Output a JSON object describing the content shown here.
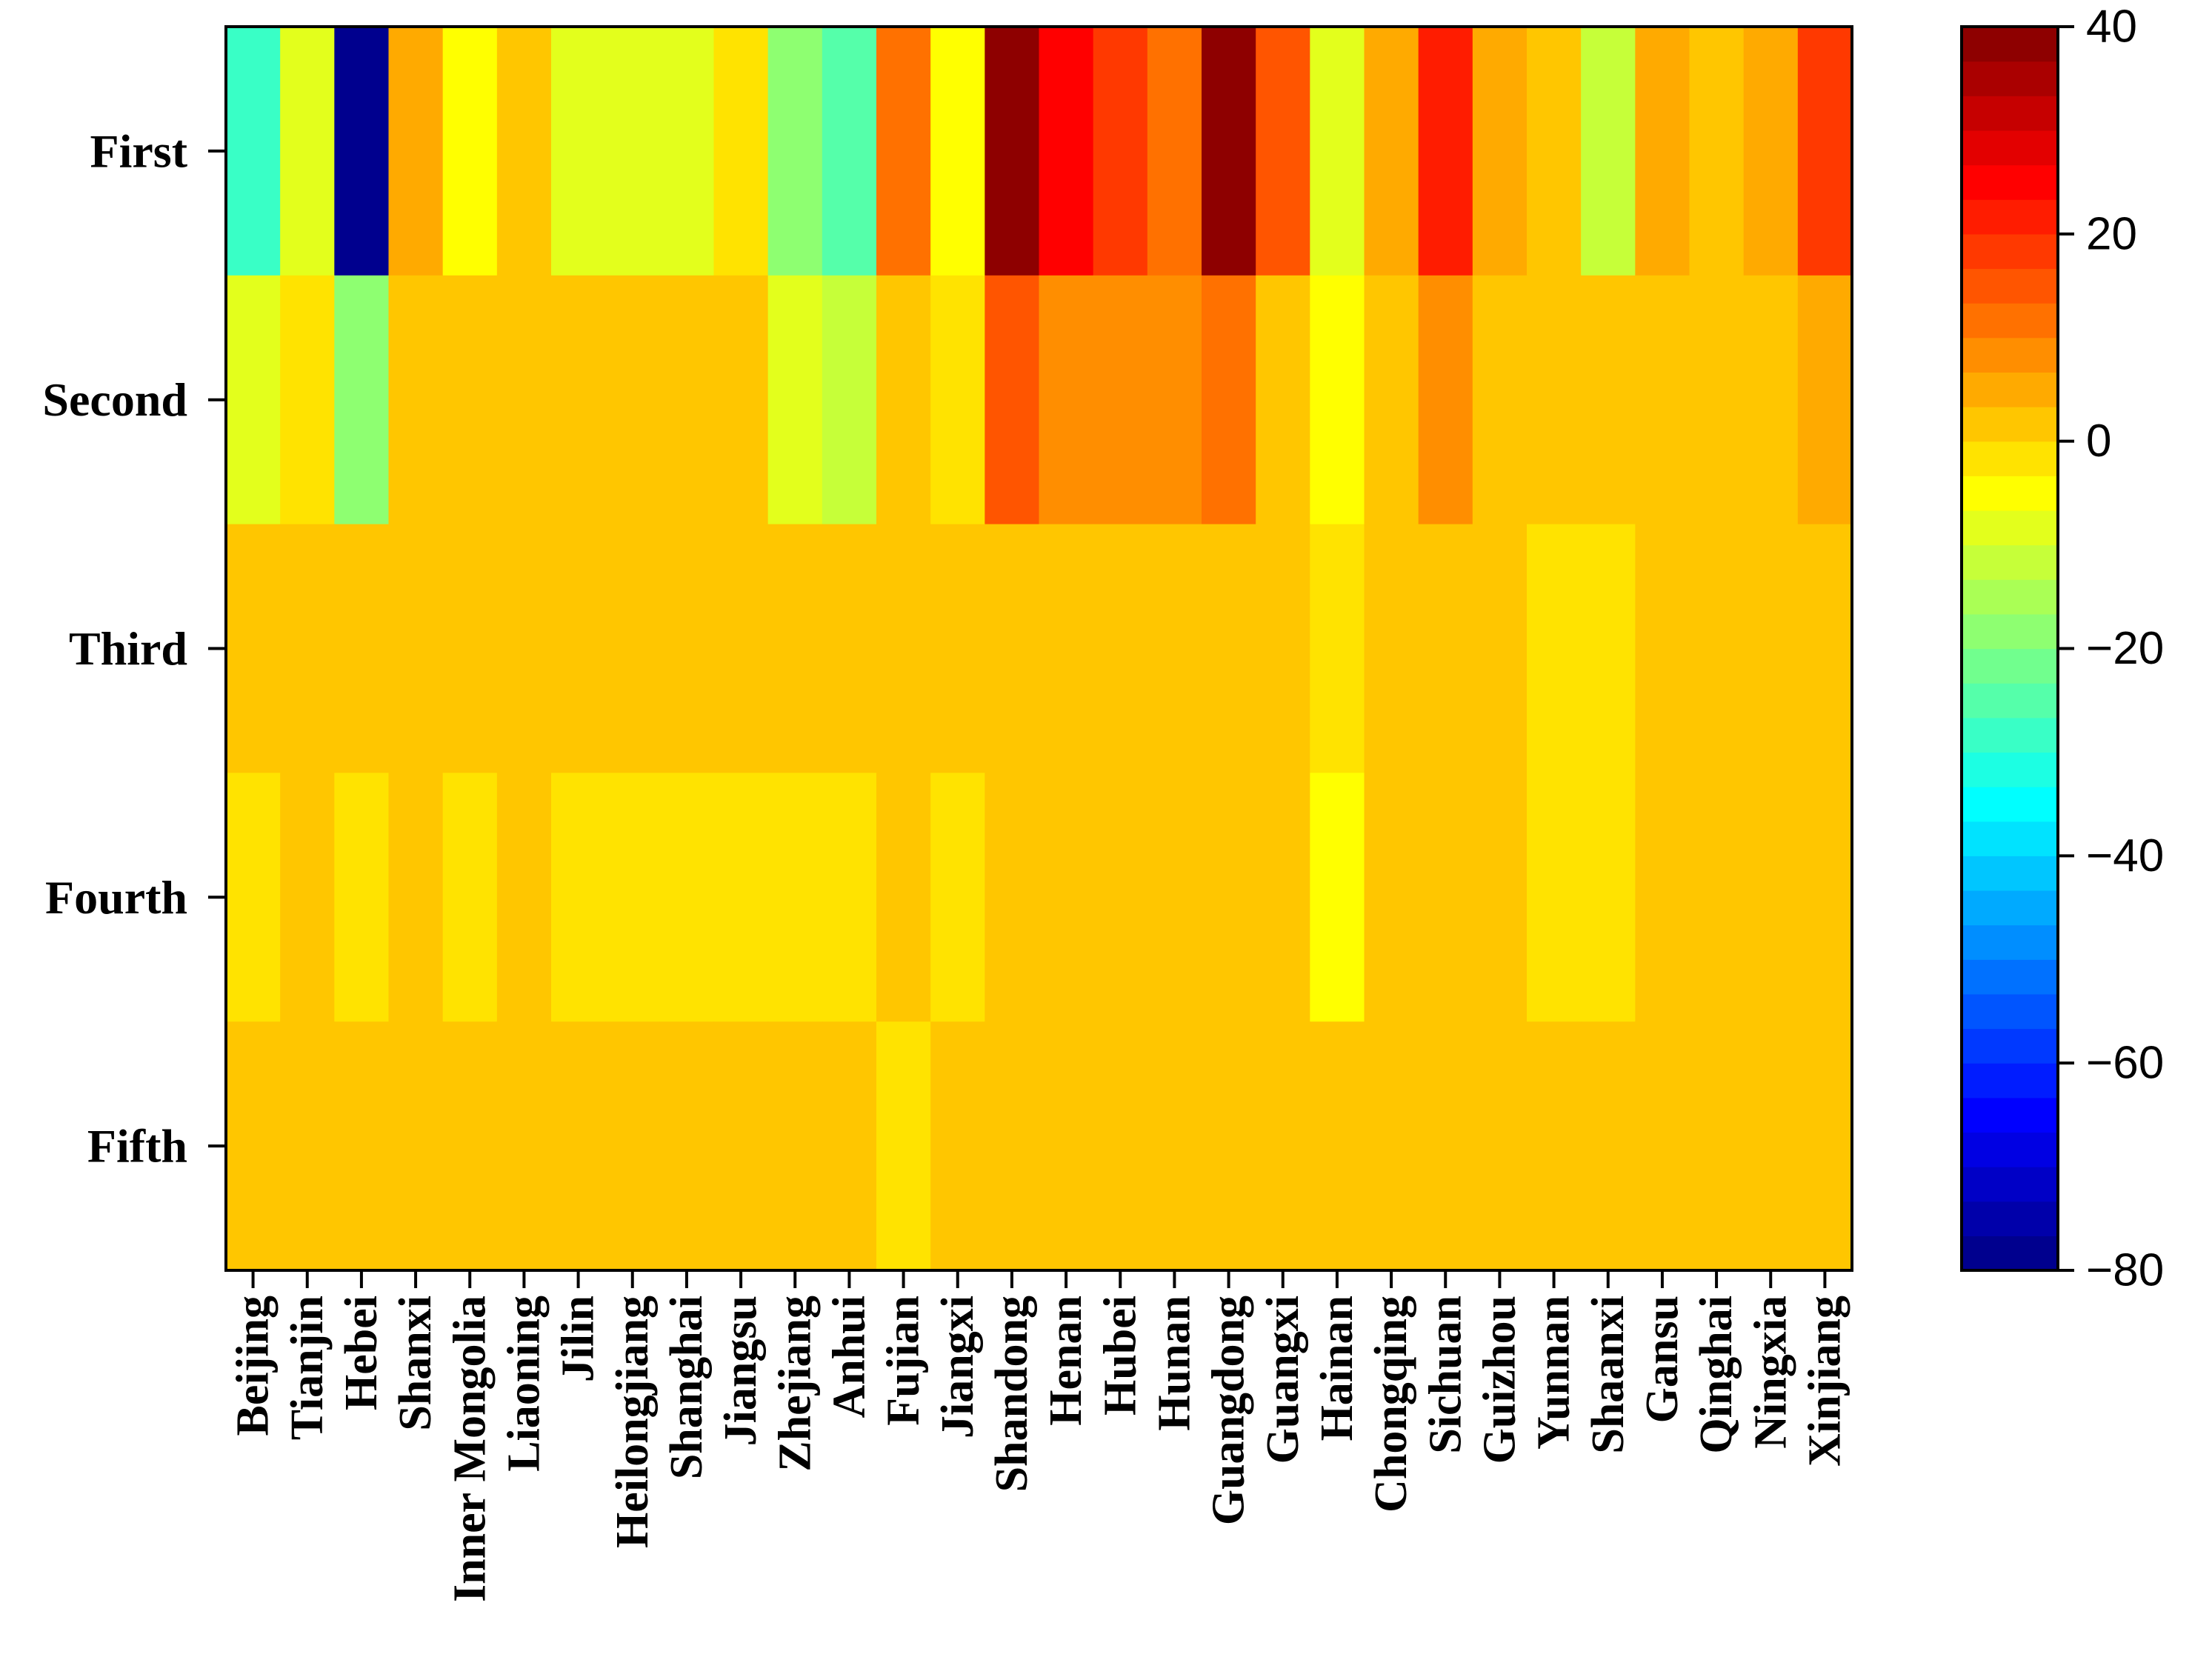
{
  "chart_data": {
    "type": "heatmap",
    "rows": [
      "First",
      "Second",
      "Third",
      "Fourth",
      "Fifth"
    ],
    "columns": [
      "Beijing",
      "Tianjin",
      "Hebei",
      "Shanxi",
      "Inner Mongolia",
      "Liaoning",
      "Jilin",
      "Heilongjiang",
      "Shanghai",
      "Jiangsu",
      "Zhejiang",
      "Anhui",
      "Fujian",
      "Jiangxi",
      "Shandong",
      "Henan",
      "Hubei",
      "Hunan",
      "Guangdong",
      "Guangxi",
      "Hainan",
      "Chongqing",
      "Sichuan",
      "Guizhou",
      "Yunnan",
      "Shaanxi",
      "Gansu",
      "Qinghai",
      "Ningxia",
      "Xinjiang"
    ],
    "values": [
      [
        -28,
        -7,
        -80,
        5,
        -5,
        1,
        -7,
        -10,
        -10,
        -3,
        -20,
        -24,
        12,
        -5,
        40,
        25,
        17,
        12,
        40,
        14,
        -7,
        5,
        20,
        4,
        1,
        -12,
        4,
        1,
        5,
        17
      ],
      [
        -10,
        -2,
        -20,
        0,
        0,
        2,
        0,
        0,
        0,
        0,
        -10,
        -12,
        2,
        -3,
        14,
        7,
        7,
        7,
        12,
        0,
        -5,
        1,
        7,
        2,
        2,
        0,
        1,
        1,
        1,
        6
      ],
      [
        0,
        0,
        0,
        1,
        0,
        2,
        0,
        0,
        0,
        0,
        0,
        0,
        2,
        0,
        1,
        1,
        1,
        1,
        1,
        1,
        -3,
        1,
        1,
        1,
        -1,
        -1,
        1,
        1,
        1,
        1
      ],
      [
        -3,
        1,
        -2,
        1,
        -1,
        0,
        -1,
        -1,
        -1,
        -1,
        -1,
        -1,
        2,
        -2,
        1,
        1,
        1,
        1,
        1,
        1,
        -4,
        1,
        1,
        1,
        -3,
        -3,
        1,
        1,
        1,
        1
      ],
      [
        2,
        2,
        2,
        2,
        2,
        2,
        2,
        2,
        2,
        2,
        2,
        2,
        -1,
        2,
        2,
        2,
        2,
        2,
        2,
        2,
        2,
        2,
        2,
        2,
        2,
        2,
        2,
        2,
        2,
        2
      ]
    ],
    "colorbar": {
      "min": -80,
      "max": 40,
      "ticks": [
        "40",
        "20",
        "0",
        "−20",
        "−40",
        "−60",
        "−80"
      ],
      "tick_values": [
        40,
        20,
        0,
        -20,
        -40,
        -60,
        -80
      ],
      "levels": 36,
      "colormap": "jet"
    }
  }
}
